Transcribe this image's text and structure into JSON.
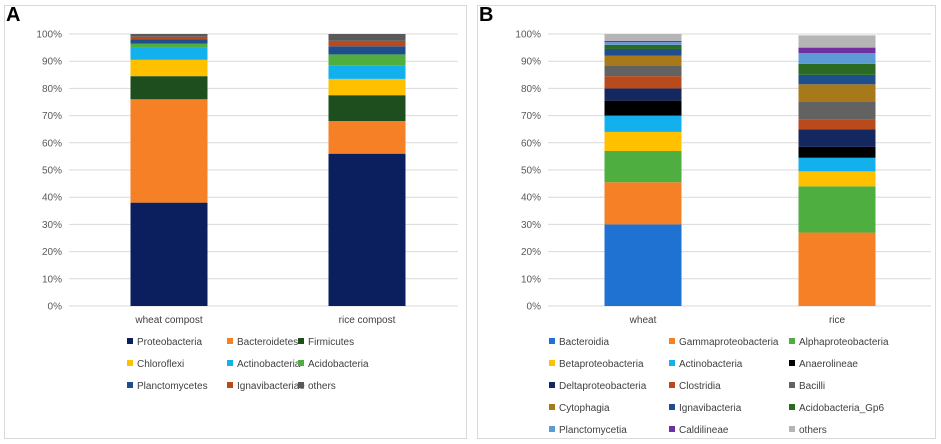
{
  "panels": {
    "a": "A",
    "b": "B"
  },
  "chart_data": [
    {
      "type": "bar",
      "stacked": true,
      "percent": true,
      "panel": "A",
      "categories": [
        "wheat compost",
        "rice compost"
      ],
      "ylim": [
        0,
        100
      ],
      "yticks": [
        "0%",
        "10%",
        "20%",
        "30%",
        "40%",
        "50%",
        "60%",
        "70%",
        "80%",
        "90%",
        "100%"
      ],
      "series": [
        {
          "name": "Proteobacteria",
          "color": "#0b1f5f",
          "values": [
            38,
            56
          ]
        },
        {
          "name": "Bacteroidetes",
          "color": "#f58025",
          "values": [
            38,
            12
          ]
        },
        {
          "name": "Firmicutes",
          "color": "#1e4d1e",
          "values": [
            8.5,
            9.5
          ]
        },
        {
          "name": "Chloroflexi",
          "color": "#ffc000",
          "values": [
            6,
            6
          ]
        },
        {
          "name": "Actinobacteria",
          "color": "#12b0ec",
          "values": [
            4.5,
            5
          ]
        },
        {
          "name": "Acidobacteria",
          "color": "#4eae3f",
          "values": [
            1.5,
            4
          ]
        },
        {
          "name": "Planctomycetes",
          "color": "#1f4e8c",
          "values": [
            1.5,
            3
          ]
        },
        {
          "name": "Ignavibacteriae",
          "color": "#b84a1c",
          "values": [
            1,
            2
          ]
        },
        {
          "name": "others",
          "color": "#595959",
          "values": [
            1,
            2.5
          ]
        }
      ]
    },
    {
      "type": "bar",
      "stacked": true,
      "percent": true,
      "panel": "B",
      "categories": [
        "wheat",
        "rice"
      ],
      "ylim": [
        0,
        100
      ],
      "yticks": [
        "0%",
        "10%",
        "20%",
        "30%",
        "40%",
        "50%",
        "60%",
        "70%",
        "80%",
        "90%",
        "100%"
      ],
      "series": [
        {
          "name": "Bacteroidia",
          "color": "#1f72d2",
          "values": [
            30,
            0
          ]
        },
        {
          "name": "Gammaproteobacteria",
          "color": "#f58025",
          "values": [
            15.5,
            27
          ]
        },
        {
          "name": "Alphaproteobacteria",
          "color": "#4eae3f",
          "values": [
            11.5,
            17
          ]
        },
        {
          "name": "Betaproteobacteria",
          "color": "#ffc000",
          "values": [
            7,
            5.5
          ]
        },
        {
          "name": "Actinobacteria",
          "color": "#12b0ec",
          "values": [
            6,
            5
          ]
        },
        {
          "name": "Anaerolineae",
          "color": "#000000",
          "values": [
            5.5,
            4
          ]
        },
        {
          "name": "Deltaproteobacteria",
          "color": "#14275f",
          "values": [
            4.5,
            6.5
          ]
        },
        {
          "name": "Clostridia",
          "color": "#b84a1c",
          "values": [
            4.5,
            3.5
          ]
        },
        {
          "name": "Bacilli",
          "color": "#626262",
          "values": [
            4,
            6.5
          ]
        },
        {
          "name": "Cytophagia",
          "color": "#a8791b",
          "values": [
            3.5,
            6.5
          ]
        },
        {
          "name": "Ignavibacteria",
          "color": "#1f4e8c",
          "values": [
            2.5,
            3.5
          ]
        },
        {
          "name": "Acidobacteria_Gp6",
          "color": "#2a6a22",
          "values": [
            1.5,
            4
          ]
        },
        {
          "name": "Planctomycetia",
          "color": "#5d9bd6",
          "values": [
            1,
            4
          ]
        },
        {
          "name": "Caldilineae",
          "color": "#7030a0",
          "values": [
            0.5,
            2
          ]
        },
        {
          "name": "others",
          "color": "#b5b5b5",
          "values": [
            2.5,
            4.5
          ]
        }
      ]
    }
  ]
}
